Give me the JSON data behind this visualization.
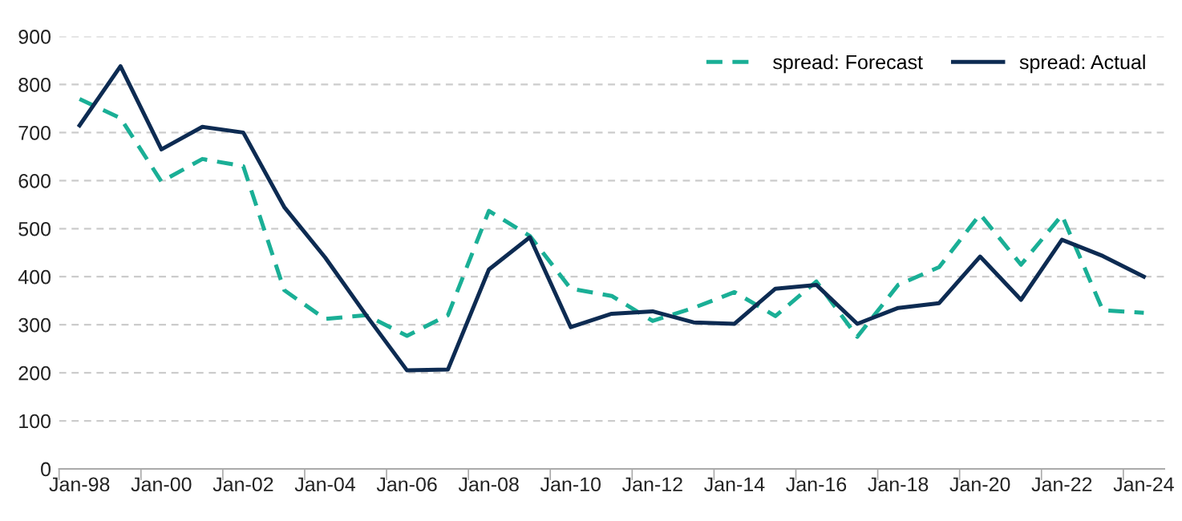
{
  "chart_data": {
    "type": "line",
    "categories": [
      "Jan-98",
      null,
      "Jan-00",
      null,
      "Jan-02",
      null,
      "Jan-04",
      null,
      "Jan-06",
      null,
      "Jan-08",
      null,
      "Jan-10",
      null,
      "Jan-12",
      null,
      "Jan-14",
      null,
      "Jan-16",
      null,
      "Jan-18",
      null,
      "Jan-20",
      null,
      "Jan-22",
      null,
      "Jan-24"
    ],
    "series": [
      {
        "name": "spread: Forecast",
        "color": "#1aaf96",
        "line_style": "dashed",
        "values": [
          770,
          730,
          598,
          645,
          630,
          372,
          312,
          320,
          277,
          320,
          537,
          485,
          375,
          360,
          308,
          335,
          368,
          318,
          390,
          275,
          383,
          420,
          530,
          425,
          528,
          330,
          325
        ]
      },
      {
        "name": "spread: Actual",
        "color": "#0d2b52",
        "line_style": "solid",
        "values": [
          715,
          838,
          665,
          712,
          700,
          545,
          440,
          320,
          205,
          207,
          415,
          482,
          295,
          323,
          328,
          305,
          302,
          375,
          383,
          302,
          335,
          345,
          442,
          352,
          477,
          443,
          400
        ]
      }
    ],
    "ylim": [
      0,
      900
    ],
    "yticks": [
      0,
      100,
      200,
      300,
      400,
      500,
      600,
      700,
      800,
      900
    ],
    "grid": "y",
    "legend": "top right",
    "marker": "none"
  }
}
